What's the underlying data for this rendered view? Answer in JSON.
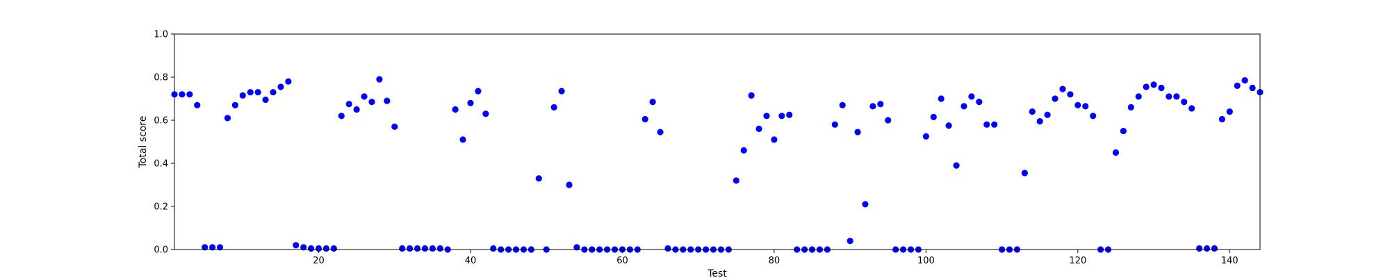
{
  "chart_data": {
    "type": "scatter",
    "xlabel": "Test",
    "ylabel": "Total score",
    "xlim": [
      1,
      144
    ],
    "ylim": [
      0,
      1.0
    ],
    "xticks": [
      20,
      40,
      60,
      80,
      100,
      120,
      140
    ],
    "yticks": [
      0.0,
      0.2,
      0.4,
      0.6,
      0.8,
      1.0
    ],
    "xtick_labels": [
      "20",
      "40",
      "60",
      "80",
      "100",
      "120",
      "140"
    ],
    "ytick_labels": [
      "0.0",
      "0.2",
      "0.4",
      "0.6",
      "0.8",
      "1.0"
    ],
    "grid": false,
    "marker_color": "#0000ff",
    "series": [
      {
        "x": [
          1,
          2,
          3,
          4,
          5,
          6,
          7,
          8,
          9,
          10,
          11,
          12,
          13,
          14,
          15,
          16,
          17,
          18,
          19,
          20,
          21,
          22,
          23,
          24,
          25,
          26,
          27,
          28,
          29,
          30,
          31,
          32,
          33,
          34,
          35,
          36,
          37,
          38,
          39,
          40,
          41,
          42,
          43,
          44,
          45,
          46,
          47,
          48,
          49,
          50,
          51,
          52,
          53,
          54,
          55,
          56,
          57,
          58,
          59,
          60,
          61,
          62,
          63,
          64,
          65,
          66,
          67,
          68,
          69,
          70,
          71,
          72,
          73,
          74,
          75,
          76,
          77,
          78,
          79,
          80,
          81,
          82,
          83,
          84,
          85,
          86,
          87,
          88,
          89,
          90,
          91,
          92,
          93,
          94,
          95,
          96,
          97,
          98,
          99,
          100,
          101,
          102,
          103,
          104,
          105,
          106,
          107,
          108,
          109,
          110,
          111,
          112,
          113,
          114,
          115,
          116,
          117,
          118,
          119,
          120,
          121,
          122,
          123,
          124,
          125,
          126,
          127,
          128,
          129,
          130,
          131,
          132,
          133,
          134,
          135,
          136,
          137,
          138,
          139,
          140,
          141,
          142,
          143,
          144
        ],
        "y": [
          0.72,
          0.72,
          0.72,
          0.67,
          0.01,
          0.01,
          0.01,
          0.61,
          0.67,
          0.715,
          0.73,
          0.73,
          0.695,
          0.73,
          0.755,
          0.78,
          0.02,
          0.01,
          0.005,
          0.005,
          0.005,
          0.005,
          0.62,
          0.675,
          0.65,
          0.71,
          0.685,
          0.79,
          0.69,
          0.57,
          0.005,
          0.005,
          0.005,
          0.005,
          0.005,
          0.005,
          0.0,
          0.65,
          0.51,
          0.68,
          0.735,
          0.63,
          0.005,
          0.0,
          0.0,
          0.0,
          0.0,
          0.0,
          0.33,
          0.0,
          0.66,
          0.735,
          0.3,
          0.01,
          0.0,
          0.0,
          0.0,
          0.0,
          0.0,
          0.0,
          0.0,
          0.0,
          0.605,
          0.685,
          0.545,
          0.005,
          0.0,
          0.0,
          0.0,
          0.0,
          0.0,
          0.0,
          0.0,
          0.0,
          0.32,
          0.46,
          0.715,
          0.56,
          0.62,
          0.51,
          0.62,
          0.625,
          0.0,
          0.0,
          0.0,
          0.0,
          0.0,
          0.58,
          0.67,
          0.04,
          0.545,
          0.21,
          0.665,
          0.675,
          0.6,
          0.0,
          0.0,
          0.0,
          0.0,
          0.525,
          0.615,
          0.7,
          0.575,
          0.39,
          0.665,
          0.71,
          0.685,
          0.58,
          0.58,
          0.0,
          0.0,
          0.0,
          0.355,
          0.64,
          0.595,
          0.625,
          0.7,
          0.745,
          0.72,
          0.67,
          0.665,
          0.62,
          0.0,
          0.0,
          0.45,
          0.55,
          0.66,
          0.71,
          0.755,
          0.765,
          0.75,
          0.71,
          0.71,
          0.685,
          0.655,
          0.005,
          0.005,
          0.005,
          0.605,
          0.64,
          0.76,
          0.785,
          0.75,
          0.73
        ]
      }
    ]
  }
}
